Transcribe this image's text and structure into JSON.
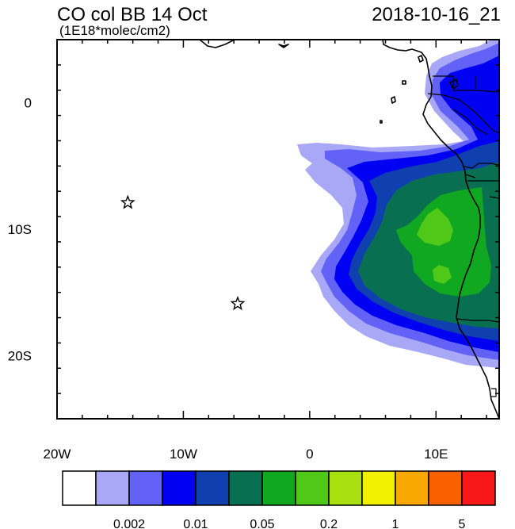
{
  "header": {
    "title": "CO col BB 14 Oct",
    "subtitle": "(1E18*molec/cm2)",
    "timestamp": "2018-10-16_21"
  },
  "map": {
    "projection": "lat-lon",
    "lon_range": [
      -20,
      15
    ],
    "lat_range": [
      -25,
      5
    ],
    "x_ticks": [
      {
        "lon": -20,
        "label": "20W"
      },
      {
        "lon": -10,
        "label": "10W"
      },
      {
        "lon": 0,
        "label": "0"
      },
      {
        "lon": 10,
        "label": "10E"
      }
    ],
    "y_ticks": [
      {
        "lat": 0,
        "label": "0"
      },
      {
        "lat": -10,
        "label": "10S"
      },
      {
        "lat": -20,
        "label": "20S"
      }
    ],
    "markers": [
      {
        "name": "star-ascension",
        "lon": -14.4,
        "lat": -7.9,
        "symbol": "star"
      },
      {
        "name": "star-st-helena",
        "lon": -5.7,
        "lat": -15.9,
        "symbol": "star"
      }
    ]
  },
  "colorbar": {
    "colors": [
      "#ffffff",
      "#a8a8f6",
      "#6262f6",
      "#0000f2",
      "#1040b0",
      "#087050",
      "#10a820",
      "#50c818",
      "#a8e010",
      "#f0f000",
      "#f8a800",
      "#f86000",
      "#f81818"
    ],
    "labels": [
      {
        "after_box": 2,
        "text": "0.002"
      },
      {
        "after_box": 4,
        "text": "0.01"
      },
      {
        "after_box": 6,
        "text": "0.05"
      },
      {
        "after_box": 8,
        "text": "0.2"
      },
      {
        "after_box": 10,
        "text": "1"
      },
      {
        "after_box": 12,
        "text": "5"
      }
    ]
  }
}
